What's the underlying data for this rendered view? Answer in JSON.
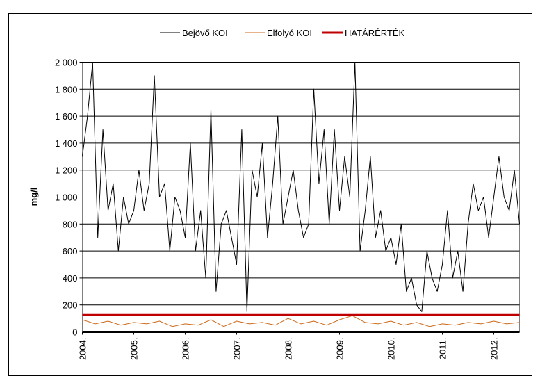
{
  "chart_data": {
    "type": "line",
    "title": "",
    "xlabel": "",
    "ylabel": "mg/l",
    "ylim": [
      0,
      2000
    ],
    "yticks": [
      "0",
      "200",
      "400",
      "600",
      "800",
      "1 000",
      "1 200",
      "1 400",
      "1 600",
      "1 800",
      "2 000"
    ],
    "ytick_values": [
      0,
      200,
      400,
      600,
      800,
      1000,
      1200,
      1400,
      1600,
      1800,
      2000
    ],
    "xticks": [
      "2004.",
      "2005.",
      "2006.",
      "2007.",
      "2008.",
      "2009.",
      "2010.",
      "2011.",
      "2012."
    ],
    "xtick_values": [
      2004,
      2005,
      2006,
      2007,
      2008,
      2009,
      2010,
      2011,
      2012
    ],
    "xlim": [
      2004.0,
      2012.5
    ],
    "grid": "horizontal",
    "legend_position": "top",
    "legend": [
      "Bejövő KOI",
      "Elfolyó KOI",
      "HATÁRÉRTÉK"
    ],
    "series": [
      {
        "name": "Bejövő KOI",
        "color": "#000000",
        "x": [
          2004.0,
          2004.1,
          2004.2,
          2004.3,
          2004.4,
          2004.5,
          2004.6,
          2004.7,
          2004.8,
          2004.9,
          2005.0,
          2005.1,
          2005.2,
          2005.3,
          2005.4,
          2005.5,
          2005.6,
          2005.7,
          2005.8,
          2005.9,
          2006.0,
          2006.1,
          2006.2,
          2006.3,
          2006.4,
          2006.5,
          2006.6,
          2006.7,
          2006.8,
          2006.9,
          2007.0,
          2007.1,
          2007.2,
          2007.3,
          2007.4,
          2007.5,
          2007.6,
          2007.7,
          2007.8,
          2007.9,
          2008.0,
          2008.1,
          2008.2,
          2008.3,
          2008.4,
          2008.5,
          2008.6,
          2008.7,
          2008.8,
          2008.9,
          2009.0,
          2009.1,
          2009.2,
          2009.3,
          2009.4,
          2009.5,
          2009.6,
          2009.7,
          2009.8,
          2009.9,
          2010.0,
          2010.1,
          2010.2,
          2010.3,
          2010.4,
          2010.5,
          2010.6,
          2010.7,
          2010.8,
          2010.9,
          2011.0,
          2011.1,
          2011.2,
          2011.3,
          2011.4,
          2011.5,
          2011.6,
          2011.7,
          2011.8,
          2011.9,
          2012.0,
          2012.1,
          2012.2,
          2012.3,
          2012.4,
          2012.5
        ],
        "values": [
          1300,
          1600,
          2000,
          700,
          1500,
          900,
          1100,
          600,
          1000,
          800,
          900,
          1200,
          900,
          1100,
          1900,
          1000,
          1100,
          600,
          1000,
          900,
          700,
          1400,
          600,
          900,
          400,
          1650,
          300,
          800,
          900,
          700,
          500,
          1500,
          150,
          1200,
          1000,
          1400,
          700,
          1100,
          1600,
          800,
          1000,
          1200,
          900,
          700,
          800,
          1800,
          1100,
          1500,
          800,
          1500,
          900,
          1300,
          1000,
          2000,
          600,
          900,
          1300,
          700,
          900,
          600,
          700,
          500,
          800,
          300,
          400,
          200,
          150,
          600,
          400,
          300,
          500,
          900,
          400,
          600,
          300,
          800,
          1100,
          900,
          1000,
          700,
          1000,
          1300,
          1000,
          900,
          1200,
          800
        ]
      },
      {
        "name": "Elfolyó KOI",
        "color": "#cc6a1a",
        "x": [
          2004.0,
          2004.25,
          2004.5,
          2004.75,
          2005.0,
          2005.25,
          2005.5,
          2005.75,
          2006.0,
          2006.25,
          2006.5,
          2006.75,
          2007.0,
          2007.25,
          2007.5,
          2007.75,
          2008.0,
          2008.25,
          2008.5,
          2008.75,
          2009.0,
          2009.25,
          2009.5,
          2009.75,
          2010.0,
          2010.25,
          2010.5,
          2010.75,
          2011.0,
          2011.25,
          2011.5,
          2011.75,
          2012.0,
          2012.25,
          2012.5
        ],
        "values": [
          90,
          60,
          80,
          50,
          70,
          60,
          80,
          40,
          60,
          50,
          90,
          40,
          80,
          60,
          70,
          50,
          100,
          60,
          80,
          50,
          90,
          120,
          70,
          60,
          80,
          50,
          70,
          40,
          60,
          50,
          70,
          60,
          80,
          60,
          70
        ]
      },
      {
        "name": "HATÁRÉRTÉK",
        "color": "#c00000",
        "x": [
          2004.0,
          2012.5
        ],
        "values": [
          125,
          125
        ]
      }
    ]
  }
}
